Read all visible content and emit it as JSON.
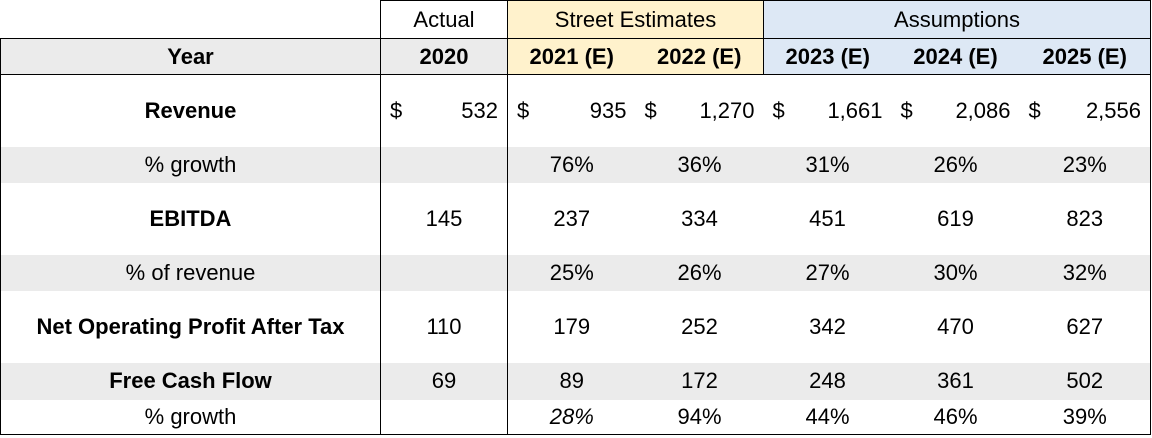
{
  "header_groups": {
    "actual": "Actual",
    "street": "Street Estimates",
    "assumptions": "Assumptions"
  },
  "year_label": "Year",
  "years": [
    "2020",
    "2021 (E)",
    "2022 (E)",
    "2023 (E)",
    "2024 (E)",
    "2025 (E)"
  ],
  "currency_symbol": "$",
  "rows": {
    "revenue": {
      "label": "Revenue",
      "values": [
        "532",
        "935",
        "1,270",
        "1,661",
        "2,086",
        "2,556"
      ]
    },
    "revenue_growth": {
      "label": "% growth",
      "values": [
        "",
        "76%",
        "36%",
        "31%",
        "26%",
        "23%"
      ]
    },
    "ebitda": {
      "label": "EBITDA",
      "values": [
        "145",
        "237",
        "334",
        "451",
        "619",
        "823"
      ]
    },
    "ebitda_margin": {
      "label": "% of revenue",
      "values": [
        "",
        "25%",
        "26%",
        "27%",
        "30%",
        "32%"
      ]
    },
    "nopat": {
      "label": "Net Operating Profit After Tax",
      "values": [
        "110",
        "179",
        "252",
        "342",
        "470",
        "627"
      ]
    },
    "fcf": {
      "label": "Free Cash Flow",
      "values": [
        "69",
        "89",
        "172",
        "248",
        "361",
        "502"
      ]
    },
    "fcf_growth": {
      "label": "% growth",
      "values": [
        "",
        "28%",
        "94%",
        "44%",
        "46%",
        "39%"
      ]
    }
  },
  "colors": {
    "street_estimates_fill": "#fff2cc",
    "assumptions_fill": "#dde8f5",
    "band_gray": "#ebebeb"
  }
}
